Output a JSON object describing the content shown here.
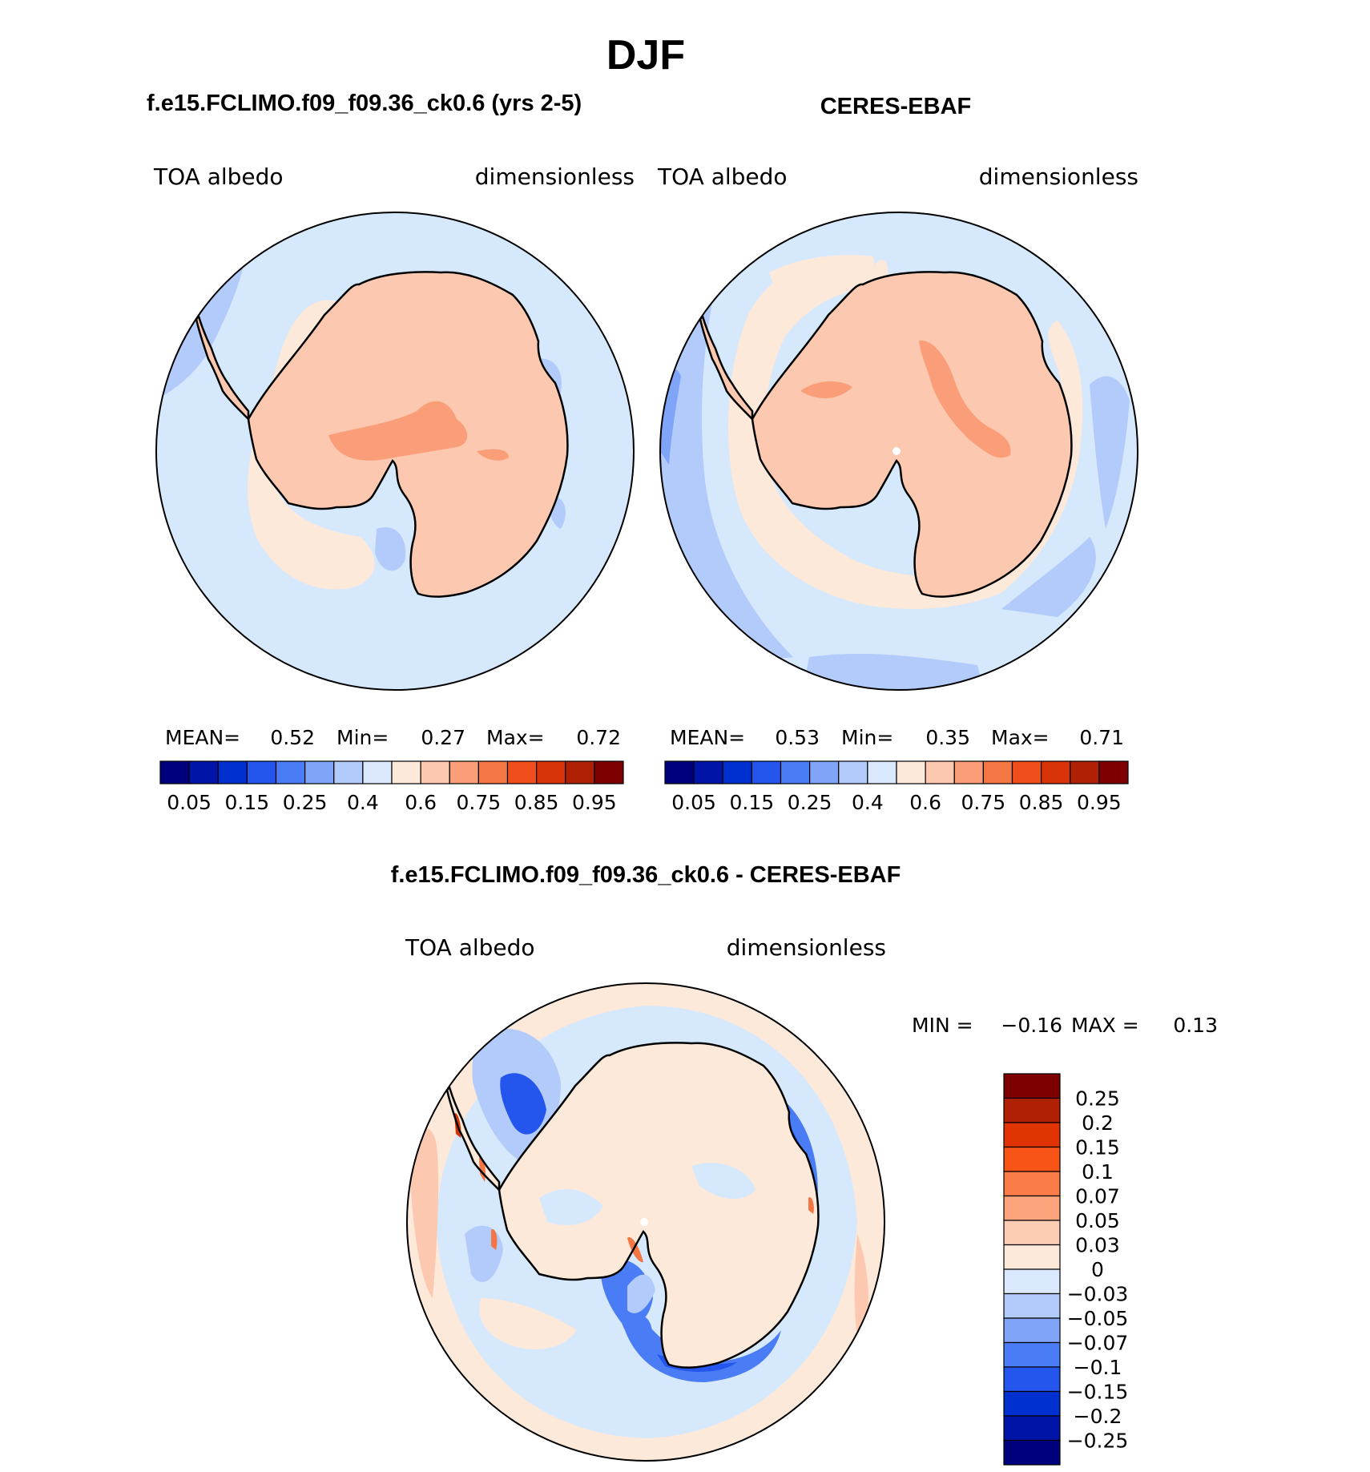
{
  "figure": {
    "season_title": "DJF"
  },
  "panels": [
    {
      "id": "model",
      "case_title": "f.e15.FCLIMO.f09_f09.36_ck0.6 (yrs 2-5)",
      "left_label": "TOA albedo",
      "right_label": "dimensionless",
      "stats": {
        "mean_label": "MEAN=",
        "mean_value": "0.52",
        "min_label": "Min=",
        "min_value": "0.27",
        "max_label": "Max=",
        "max_value": "0.72"
      }
    },
    {
      "id": "obs",
      "case_title": "CERES-EBAF",
      "left_label": "TOA albedo",
      "right_label": "dimensionless",
      "stats": {
        "mean_label": "MEAN=",
        "mean_value": "0.53",
        "min_label": "Min=",
        "min_value": "0.35",
        "max_label": "Max=",
        "max_value": "0.71"
      }
    }
  ],
  "colorbar_top": {
    "colors": [
      "#00007f",
      "#0015a8",
      "#0030d0",
      "#2455ec",
      "#4a7cf5",
      "#7fa4f8",
      "#b3cbfb",
      "#d9e8fd",
      "#fde9d9",
      "#fcc8b0",
      "#f99e78",
      "#f47644",
      "#f04e1c",
      "#d83208",
      "#b02004",
      "#7f0000"
    ],
    "tick_labels": [
      "0.05",
      "0.15",
      "0.25",
      "0.4",
      "0.6",
      "0.75",
      "0.85",
      "0.95"
    ],
    "label_boundaries": [
      1,
      3,
      5,
      7,
      9,
      11,
      13,
      15
    ]
  },
  "difference": {
    "title": "f.e15.FCLIMO.f09_f09.36_ck0.6 - CERES-EBAF",
    "left_label": "TOA albedo",
    "right_label": "dimensionless",
    "min_label": "MIN =",
    "min_value": "−0.16",
    "max_label": "MAX =",
    "max_value": "0.13"
  },
  "colorbar_diff": {
    "colors_top_to_bottom": [
      "#7f0000",
      "#b02004",
      "#e03404",
      "#f85418",
      "#fb7c48",
      "#fca47c",
      "#fcccb4",
      "#fde9d9",
      "#d9e8fd",
      "#b3cbfb",
      "#7fa4f8",
      "#4a7cf5",
      "#2455ec",
      "#0030d0",
      "#0015a8",
      "#00007f"
    ],
    "tick_labels": [
      "0.25",
      "0.2",
      "0.15",
      "0.1",
      "0.07",
      "0.05",
      "0.03",
      "0",
      "−0.03",
      "−0.05",
      "−0.07",
      "−0.1",
      "−0.15",
      "−0.2",
      "−0.25"
    ]
  },
  "map_colors": {
    "ocean_pale": "#d6e8fc",
    "ocean_blue": "#b3cbfb",
    "ocean_mid": "#7fa4f8",
    "ocean_strong": "#4a7cf5",
    "ocean_dark": "#2455ec",
    "land_salmon": "#fcc8b0",
    "land_orange": "#f99e78",
    "ice_peach": "#fde9d9",
    "red": "#d83208",
    "coast": "#000000"
  }
}
